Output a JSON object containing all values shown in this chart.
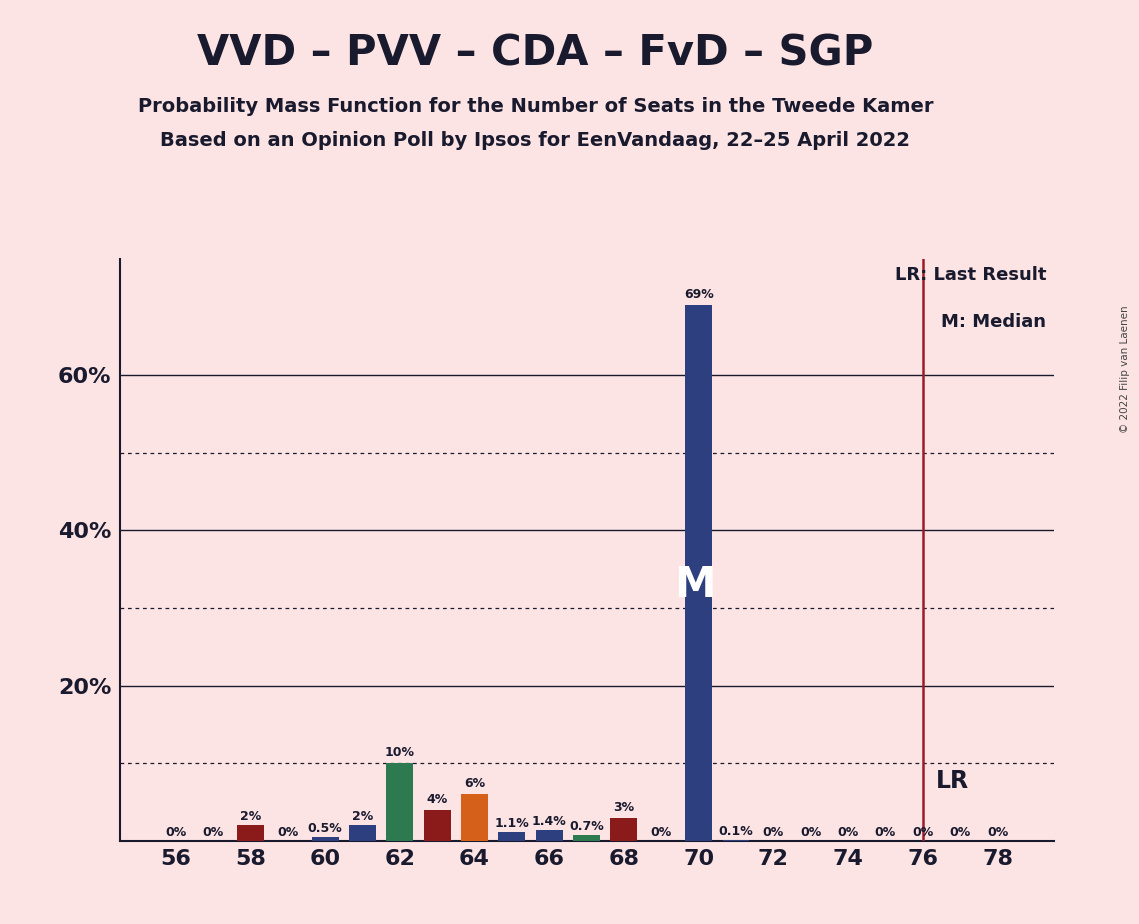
{
  "title": "VVD – PVV – CDA – FvD – SGP",
  "subtitle1": "Probability Mass Function for the Number of Seats in the Tweede Kamer",
  "subtitle2": "Based on an Opinion Poll by Ipsos for EenVandaag, 22–25 April 2022",
  "copyright": "© 2022 Filip van Laenen",
  "background_color": "#fce4e4",
  "seats": [
    56,
    57,
    58,
    59,
    60,
    61,
    62,
    63,
    64,
    65,
    66,
    67,
    68,
    69,
    70,
    71,
    72,
    73,
    74,
    75,
    76,
    77,
    78
  ],
  "probabilities": [
    0.0,
    0.0,
    2.0,
    0.0,
    0.5,
    2.0,
    10.0,
    4.0,
    6.0,
    1.1,
    1.4,
    0.7,
    3.0,
    0.0,
    69.0,
    0.1,
    0.0,
    0.0,
    0.0,
    0.0,
    0.0,
    0.0,
    0.0
  ],
  "bar_colors": [
    "#f0c8c8",
    "#f0c8c8",
    "#8b1a1a",
    "#f0c8c8",
    "#2e3f7f",
    "#2e3f7f",
    "#2d7a50",
    "#8b1a1a",
    "#d4601a",
    "#2e3f7f",
    "#2e3f7f",
    "#2d7a50",
    "#8b1a1a",
    "#f0c8c8",
    "#2e3f7f",
    "#2e3f7f",
    "#f0c8c8",
    "#f0c8c8",
    "#f0c8c8",
    "#f0c8c8",
    "#f0c8c8",
    "#f0c8c8",
    "#f0c8c8"
  ],
  "labels": [
    "0%",
    "0%",
    "2%",
    "0%",
    "0.5%",
    "2%",
    "10%",
    "4%",
    "6%",
    "1.1%",
    "1.4%",
    "0.7%",
    "3%",
    "0%",
    "69%",
    "0.1%",
    "0%",
    "0%",
    "0%",
    "0%",
    "0%",
    "0%",
    "0%"
  ],
  "median_seat": 70,
  "last_result_seat": 76,
  "ylim_max": 75,
  "solid_gridlines": [
    20,
    40,
    60
  ],
  "dotted_gridlines": [
    10,
    30,
    50
  ],
  "ytick_positions": [
    0,
    20,
    40,
    60
  ],
  "ytick_labels": [
    "",
    "20%",
    "40%",
    "60%"
  ],
  "xtick_positions": [
    56,
    58,
    60,
    62,
    64,
    66,
    68,
    70,
    72,
    74,
    76,
    78
  ],
  "legend_lr_text": "LR: Last Result",
  "legend_m_text": "M: Median",
  "lr_label": "LR",
  "median_label": "M",
  "title_fontsize": 30,
  "subtitle_fontsize": 14,
  "tick_fontsize": 16,
  "label_fontsize": 9,
  "bar_width": 0.72,
  "text_color": "#1a1a2e",
  "grid_color": "#1a1a2e",
  "lr_line_color": "#9b1c28",
  "spine_color": "#1a1a2e"
}
